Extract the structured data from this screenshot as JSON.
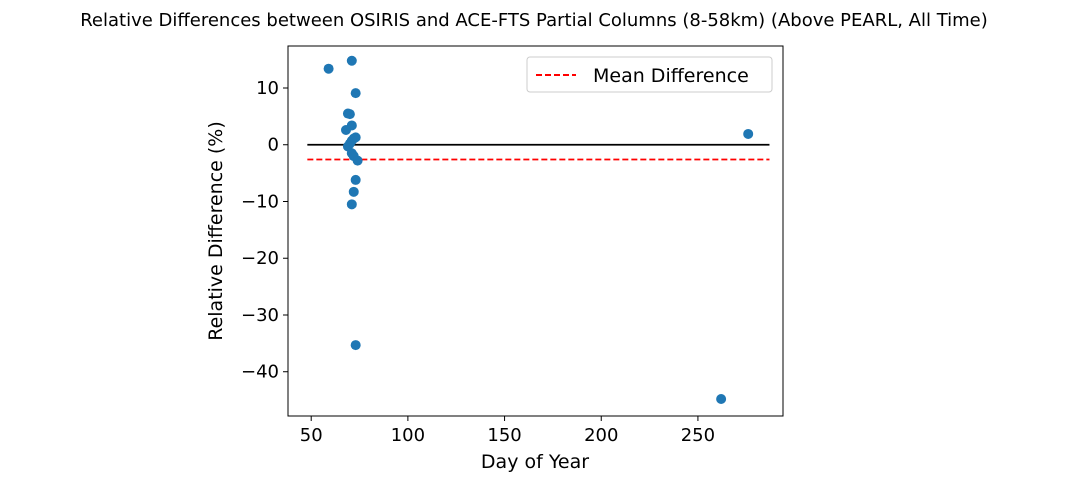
{
  "chart_data": {
    "type": "scatter",
    "title": "Relative Differences between OSIRIS and ACE-FTS Partial Columns (8-58km) (Above PEARL, All Time)",
    "xlabel": "Day of Year",
    "ylabel": "Relative Difference (%)",
    "xlim": [
      38,
      294
    ],
    "ylim": [
      -47.8,
      17.4
    ],
    "xticks": [
      50,
      100,
      150,
      200,
      250
    ],
    "yticks": [
      10,
      0,
      -10,
      -20,
      -30,
      -40
    ],
    "grid": false,
    "legend_position": "top-right",
    "legend": [
      {
        "label": "Mean Difference",
        "style": "dashed",
        "color": "#ff0000"
      }
    ],
    "zero_line": {
      "y": 0,
      "x_start": 48,
      "x_end": 287,
      "color": "#000000"
    },
    "mean_line": {
      "y": -2.6,
      "x_start": 48,
      "x_end": 287,
      "color": "#ff0000"
    },
    "point_color": "#1f77b4",
    "points": [
      {
        "x": 59,
        "y": 13.4
      },
      {
        "x": 71,
        "y": 14.8
      },
      {
        "x": 73,
        "y": 9.1
      },
      {
        "x": 69,
        "y": 5.5
      },
      {
        "x": 70,
        "y": 5.4
      },
      {
        "x": 71,
        "y": 3.4
      },
      {
        "x": 68,
        "y": 2.6
      },
      {
        "x": 73,
        "y": 1.3
      },
      {
        "x": 72,
        "y": 1.1
      },
      {
        "x": 71,
        "y": 0.7
      },
      {
        "x": 70,
        "y": 0.2
      },
      {
        "x": 69,
        "y": -0.3
      },
      {
        "x": 71,
        "y": -1.5
      },
      {
        "x": 72,
        "y": -2.0
      },
      {
        "x": 74,
        "y": -2.8
      },
      {
        "x": 73,
        "y": -6.2
      },
      {
        "x": 72,
        "y": -8.3
      },
      {
        "x": 71,
        "y": -10.5
      },
      {
        "x": 73,
        "y": -35.3
      },
      {
        "x": 262,
        "y": -44.8
      },
      {
        "x": 276,
        "y": 1.9
      }
    ]
  }
}
